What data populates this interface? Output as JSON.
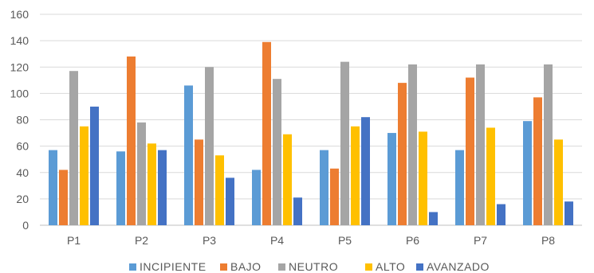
{
  "chart_data": {
    "type": "bar",
    "title": "",
    "xlabel": "",
    "ylabel": "",
    "ylim": [
      0,
      160
    ],
    "yticks": [
      0,
      20,
      40,
      60,
      80,
      100,
      120,
      140,
      160
    ],
    "grid": true,
    "legend_position": "bottom",
    "categories": [
      "P1",
      "P2",
      "P3",
      "P4",
      "P5",
      "P6",
      "P7",
      "P8"
    ],
    "series": [
      {
        "name": "INCIPIENTE",
        "color": "#5b9bd5",
        "values": [
          57,
          56,
          106,
          42,
          57,
          70,
          57,
          79
        ]
      },
      {
        "name": "BAJO",
        "color": "#ed7d31",
        "values": [
          42,
          128,
          65,
          139,
          43,
          108,
          112,
          97
        ]
      },
      {
        "name": "NEUTRO",
        "color": "#a5a5a5",
        "values": [
          117,
          78,
          120,
          111,
          124,
          122,
          122,
          122
        ]
      },
      {
        "name": "ALTO",
        "color": "#ffc000",
        "values": [
          75,
          62,
          53,
          69,
          75,
          71,
          74,
          65
        ]
      },
      {
        "name": "AVANZADO",
        "color": "#4472c4",
        "values": [
          90,
          57,
          36,
          21,
          82,
          10,
          16,
          18
        ]
      }
    ]
  }
}
